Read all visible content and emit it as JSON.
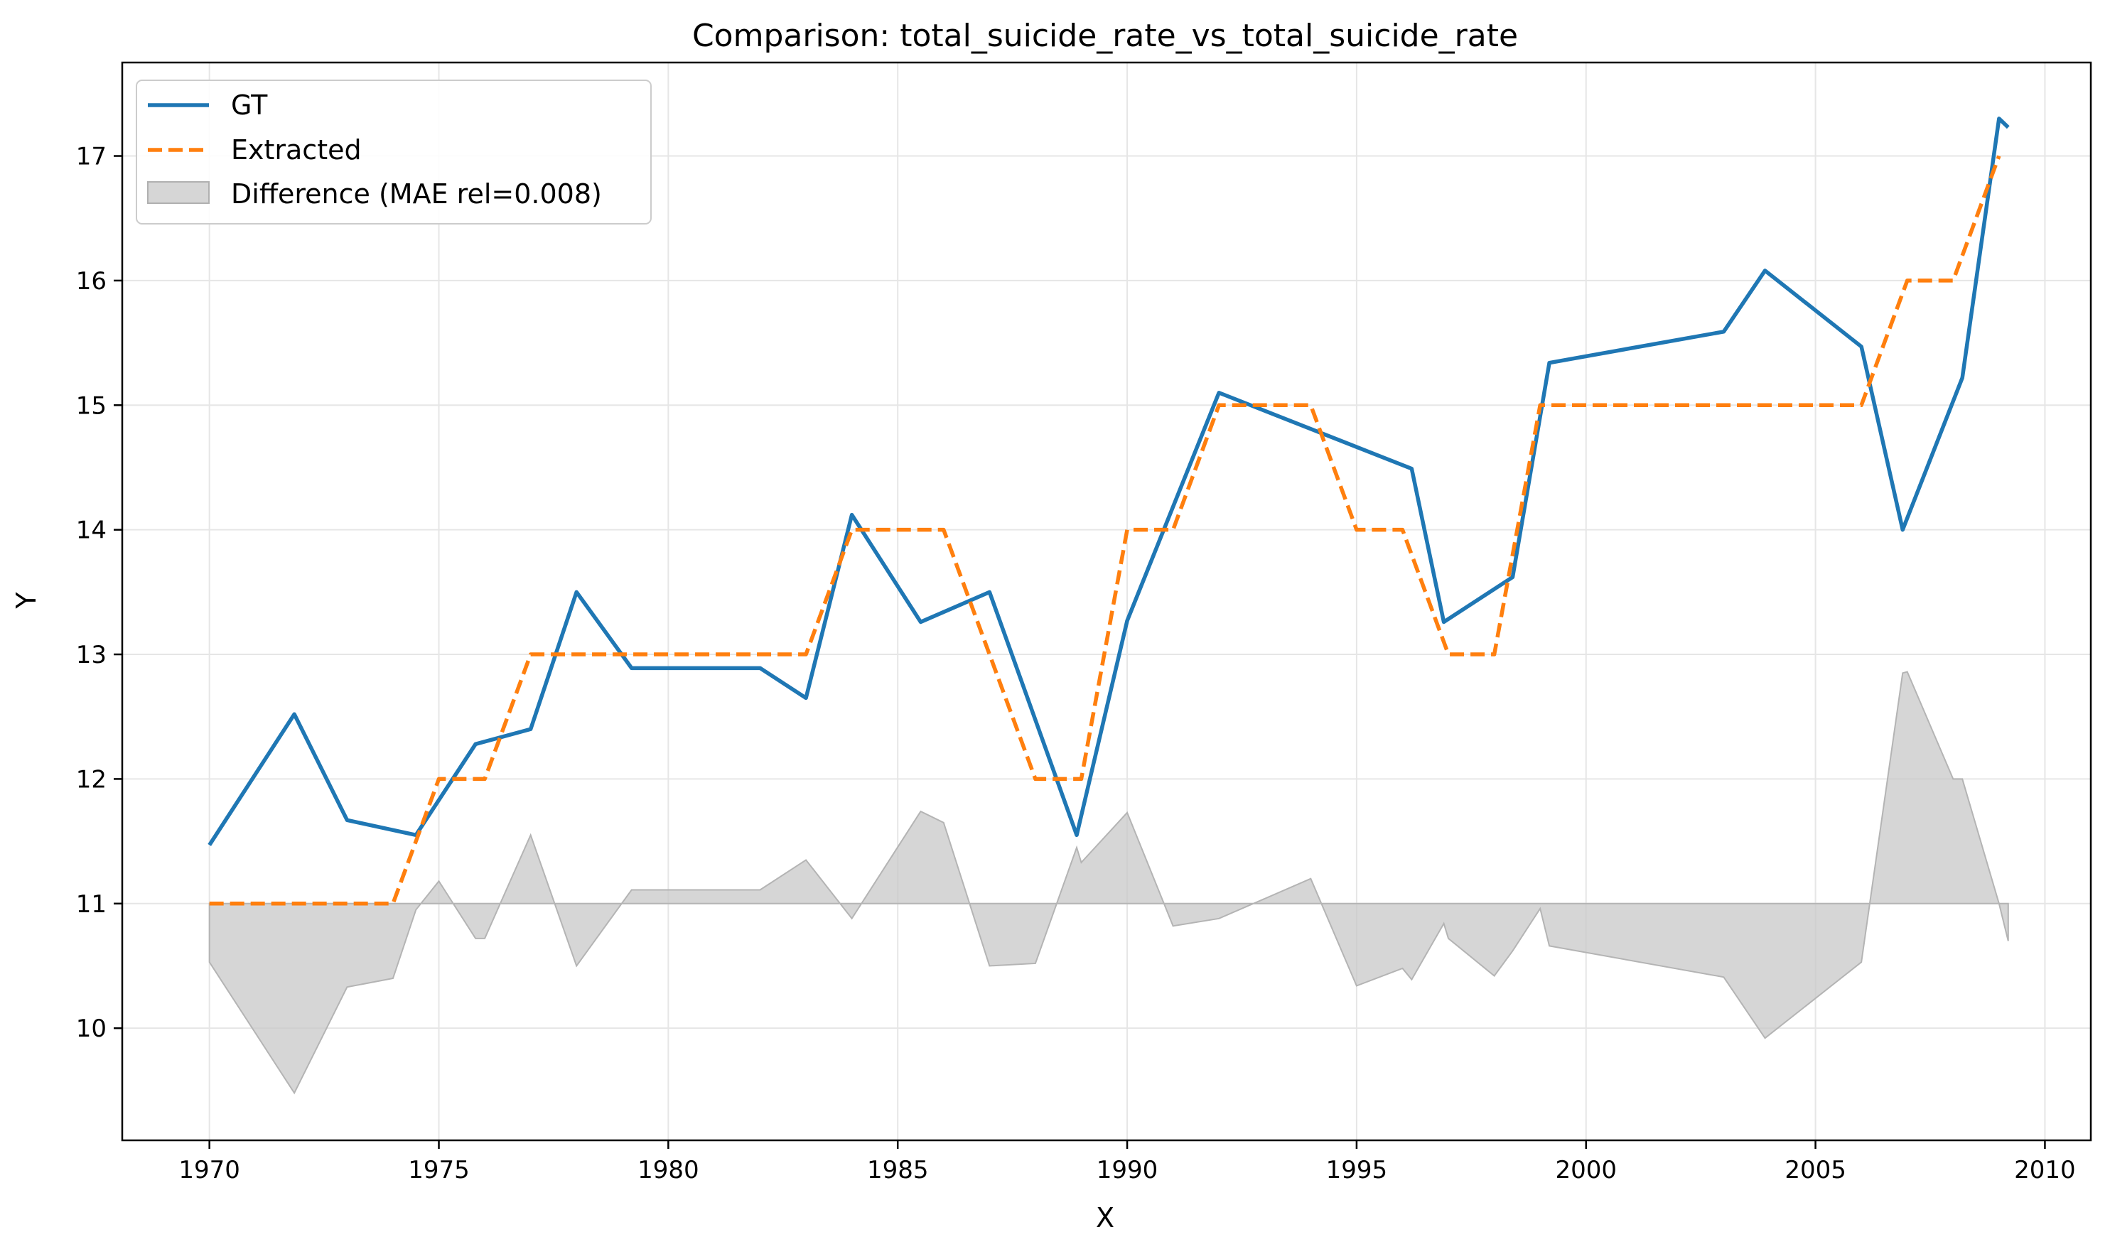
{
  "chart_data": {
    "type": "line",
    "title": "Comparison: total_suicide_rate_vs_total_suicide_rate",
    "xlabel": "X",
    "ylabel": "Y",
    "xlim": [
      1968.1,
      2011.0
    ],
    "ylim": [
      9.1,
      17.75
    ],
    "xticks": [
      1970,
      1975,
      1980,
      1985,
      1990,
      1995,
      2000,
      2005,
      2010
    ],
    "yticks": [
      10,
      11,
      12,
      13,
      14,
      15,
      16,
      17
    ],
    "grid": true,
    "legend_position": "top-left",
    "difference_baseline": 11,
    "series": [
      {
        "name": "GT",
        "style": "solid",
        "color": "#1f77b4",
        "points": [
          [
            1970.0,
            11.47
          ],
          [
            1971.85,
            12.52
          ],
          [
            1973.0,
            11.67
          ],
          [
            1974.5,
            11.55
          ],
          [
            1975.8,
            12.28
          ],
          [
            1977.0,
            12.4
          ],
          [
            1978.0,
            13.5
          ],
          [
            1979.2,
            12.89
          ],
          [
            1982.0,
            12.89
          ],
          [
            1983.0,
            12.65
          ],
          [
            1984.0,
            14.12
          ],
          [
            1985.5,
            13.26
          ],
          [
            1987.0,
            13.5
          ],
          [
            1988.9,
            11.55
          ],
          [
            1990.0,
            13.27
          ],
          [
            1992.0,
            15.1
          ],
          [
            1996.2,
            14.49
          ],
          [
            1996.9,
            13.26
          ],
          [
            1998.4,
            13.62
          ],
          [
            1999.2,
            15.34
          ],
          [
            2003.0,
            15.59
          ],
          [
            2003.9,
            16.08
          ],
          [
            2006.0,
            15.47
          ],
          [
            2006.9,
            14.0
          ],
          [
            2008.2,
            15.22
          ],
          [
            2009.0,
            17.3
          ],
          [
            2009.2,
            17.23
          ]
        ]
      },
      {
        "name": "Extracted",
        "style": "dashed",
        "color": "#ff7f0e",
        "points": [
          [
            1970.0,
            11.0
          ],
          [
            1974.0,
            11.0
          ],
          [
            1975.0,
            12.0
          ],
          [
            1976.0,
            12.0
          ],
          [
            1977.0,
            13.0
          ],
          [
            1983.0,
            13.0
          ],
          [
            1984.0,
            14.0
          ],
          [
            1986.0,
            14.0
          ],
          [
            1988.0,
            12.0
          ],
          [
            1989.0,
            12.0
          ],
          [
            1990.0,
            14.0
          ],
          [
            1991.0,
            14.0
          ],
          [
            1992.0,
            15.0
          ],
          [
            1994.0,
            15.0
          ],
          [
            1995.0,
            14.0
          ],
          [
            1996.0,
            14.0
          ],
          [
            1997.0,
            13.0
          ],
          [
            1998.0,
            13.0
          ],
          [
            1999.0,
            15.0
          ],
          [
            2006.0,
            15.0
          ],
          [
            2007.0,
            16.0
          ],
          [
            2008.0,
            16.0
          ],
          [
            2009.0,
            17.0
          ]
        ]
      },
      {
        "name": "Difference (MAE rel=0.008)",
        "style": "fill",
        "color": "#c8c8c8",
        "points": [
          [
            1970.0,
            10.53
          ],
          [
            1971.85,
            9.48
          ],
          [
            1973.0,
            10.33
          ],
          [
            1974.0,
            10.4
          ],
          [
            1974.5,
            10.95
          ],
          [
            1975.0,
            11.18
          ],
          [
            1975.8,
            10.72
          ],
          [
            1976.0,
            10.72
          ],
          [
            1977.0,
            11.55
          ],
          [
            1978.0,
            10.5
          ],
          [
            1979.2,
            11.11
          ],
          [
            1982.0,
            11.11
          ],
          [
            1983.0,
            11.35
          ],
          [
            1984.0,
            10.88
          ],
          [
            1985.5,
            11.74
          ],
          [
            1986.0,
            11.65
          ],
          [
            1987.0,
            10.5
          ],
          [
            1988.0,
            10.52
          ],
          [
            1988.9,
            11.45
          ],
          [
            1989.0,
            11.33
          ],
          [
            1990.0,
            11.73
          ],
          [
            1991.0,
            10.82
          ],
          [
            1992.0,
            10.88
          ],
          [
            1994.0,
            11.2
          ],
          [
            1995.0,
            10.34
          ],
          [
            1996.0,
            10.48
          ],
          [
            1996.2,
            10.39
          ],
          [
            1996.9,
            10.84
          ],
          [
            1997.0,
            10.72
          ],
          [
            1998.0,
            10.42
          ],
          [
            1998.4,
            10.62
          ],
          [
            1999.0,
            10.96
          ],
          [
            1999.2,
            10.66
          ],
          [
            2003.0,
            10.41
          ],
          [
            2003.9,
            9.92
          ],
          [
            2006.0,
            10.53
          ],
          [
            2006.9,
            12.85
          ],
          [
            2007.0,
            12.86
          ],
          [
            2008.0,
            12.0
          ],
          [
            2008.2,
            12.0
          ],
          [
            2009.0,
            11.0
          ],
          [
            2009.2,
            10.7
          ]
        ]
      }
    ]
  }
}
